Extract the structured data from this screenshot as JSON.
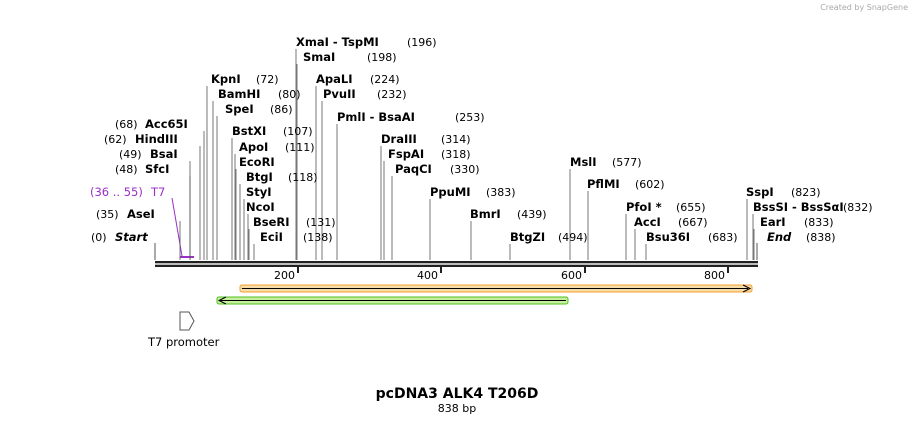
{
  "watermark": "Created by SnapGene",
  "map": {
    "start": {
      "name": "Start",
      "position": "(0)"
    },
    "end": {
      "name": "End",
      "position": "(838)"
    },
    "enzymes": [
      {
        "name": "XmaI  - TspMI",
        "position": "(196)"
      },
      {
        "name": "SmaI",
        "position": "(198)"
      },
      {
        "name": "KpnI",
        "position": "(72)"
      },
      {
        "name": "ApaLI",
        "position": "(224)"
      },
      {
        "name": "BamHI",
        "position": "(80)"
      },
      {
        "name": "PvuII",
        "position": "(232)"
      },
      {
        "name": "SpeI",
        "position": "(86)"
      },
      {
        "name": "PmlI  - BsaAI",
        "position": "(253)"
      },
      {
        "name": "Acc65I",
        "position": "(68)"
      },
      {
        "name": "BstXI",
        "position": "(107)"
      },
      {
        "name": "HindIII",
        "position": "(62)"
      },
      {
        "name": "DraIII",
        "position": "(314)"
      },
      {
        "name": "ApoI",
        "position": "(111)"
      },
      {
        "name": "BsaI",
        "position": "(49)"
      },
      {
        "name": "FspAI",
        "position": "(318)"
      },
      {
        "name": "EcoRI",
        "position": null
      },
      {
        "name": "MslI",
        "position": "(577)"
      },
      {
        "name": "SfcI",
        "position": "(48)"
      },
      {
        "name": "PaqCI",
        "position": "(330)"
      },
      {
        "name": "BtgI",
        "position": "(118)"
      },
      {
        "name": "PflMI",
        "position": "(602)"
      },
      {
        "name": "StyI",
        "position": null
      },
      {
        "name": "PpuMI",
        "position": "(383)"
      },
      {
        "name": "SspI",
        "position": "(823)"
      },
      {
        "name": "NcoI",
        "position": null
      },
      {
        "name": "PfoI *",
        "position": "(655)"
      },
      {
        "name": "BssSI  - BssSαI",
        "position": "(832)"
      },
      {
        "name": "AseI",
        "position": "(35)"
      },
      {
        "name": "BmrI",
        "position": "(439)"
      },
      {
        "name": "BseRI",
        "position": "(131)"
      },
      {
        "name": "AccI",
        "position": "(667)"
      },
      {
        "name": "EarI",
        "position": "(833)"
      },
      {
        "name": "EciI",
        "position": "(138)"
      },
      {
        "name": "BtgZI",
        "position": "(494)"
      },
      {
        "name": "Bsu36I",
        "position": "(683)"
      }
    ],
    "primer": {
      "name": "T7",
      "position": "(36 .. 55)"
    },
    "ticks": [
      "200",
      "400",
      "600",
      "800"
    ],
    "feature": "T7 promoter"
  },
  "title": "pcDNA3 ALK4 T206D",
  "length": "838 bp"
}
